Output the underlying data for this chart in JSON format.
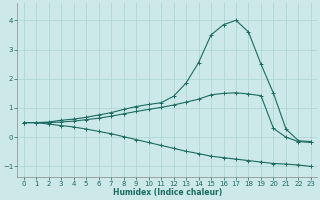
{
  "xlabel": "Humidex (Indice chaleur)",
  "bg_color": "#cce8e8",
  "line_color": "#1a6b60",
  "grid_color": "#aad4d0",
  "xlim": [
    -0.5,
    23.5
  ],
  "ylim": [
    -1.35,
    4.6
  ],
  "xticks": [
    0,
    1,
    2,
    3,
    4,
    5,
    6,
    7,
    8,
    9,
    10,
    11,
    12,
    13,
    14,
    15,
    16,
    17,
    18,
    19,
    20,
    21,
    22,
    23
  ],
  "yticks": [
    -1,
    0,
    1,
    2,
    3,
    4
  ],
  "line1_x": [
    0,
    1,
    2,
    3,
    4,
    5,
    6,
    7,
    8,
    9,
    10,
    11,
    12,
    13,
    14,
    15,
    16,
    17,
    18,
    19,
    20,
    21,
    22,
    23
  ],
  "line1_y": [
    0.5,
    0.5,
    0.52,
    0.58,
    0.62,
    0.68,
    0.76,
    0.84,
    0.95,
    1.05,
    1.12,
    1.18,
    1.4,
    1.85,
    2.55,
    3.5,
    3.85,
    4.0,
    3.6,
    2.5,
    1.5,
    0.28,
    -0.12,
    -0.15
  ],
  "line2_x": [
    0,
    1,
    2,
    3,
    4,
    5,
    6,
    7,
    8,
    9,
    10,
    11,
    12,
    13,
    14,
    15,
    16,
    17,
    18,
    19,
    20,
    21,
    22,
    23
  ],
  "line2_y": [
    0.5,
    0.5,
    0.5,
    0.52,
    0.55,
    0.6,
    0.65,
    0.72,
    0.8,
    0.88,
    0.95,
    1.02,
    1.1,
    1.2,
    1.3,
    1.45,
    1.5,
    1.52,
    1.48,
    1.42,
    0.3,
    0.0,
    -0.15,
    -0.18
  ],
  "line3_x": [
    0,
    1,
    2,
    3,
    4,
    5,
    6,
    7,
    8,
    9,
    10,
    11,
    12,
    13,
    14,
    15,
    16,
    17,
    18,
    19,
    20,
    21,
    22,
    23
  ],
  "line3_y": [
    0.5,
    0.5,
    0.45,
    0.4,
    0.35,
    0.28,
    0.2,
    0.12,
    0.02,
    -0.08,
    -0.18,
    -0.28,
    -0.38,
    -0.48,
    -0.56,
    -0.65,
    -0.7,
    -0.75,
    -0.8,
    -0.85,
    -0.9,
    -0.92,
    -0.95,
    -1.0
  ]
}
